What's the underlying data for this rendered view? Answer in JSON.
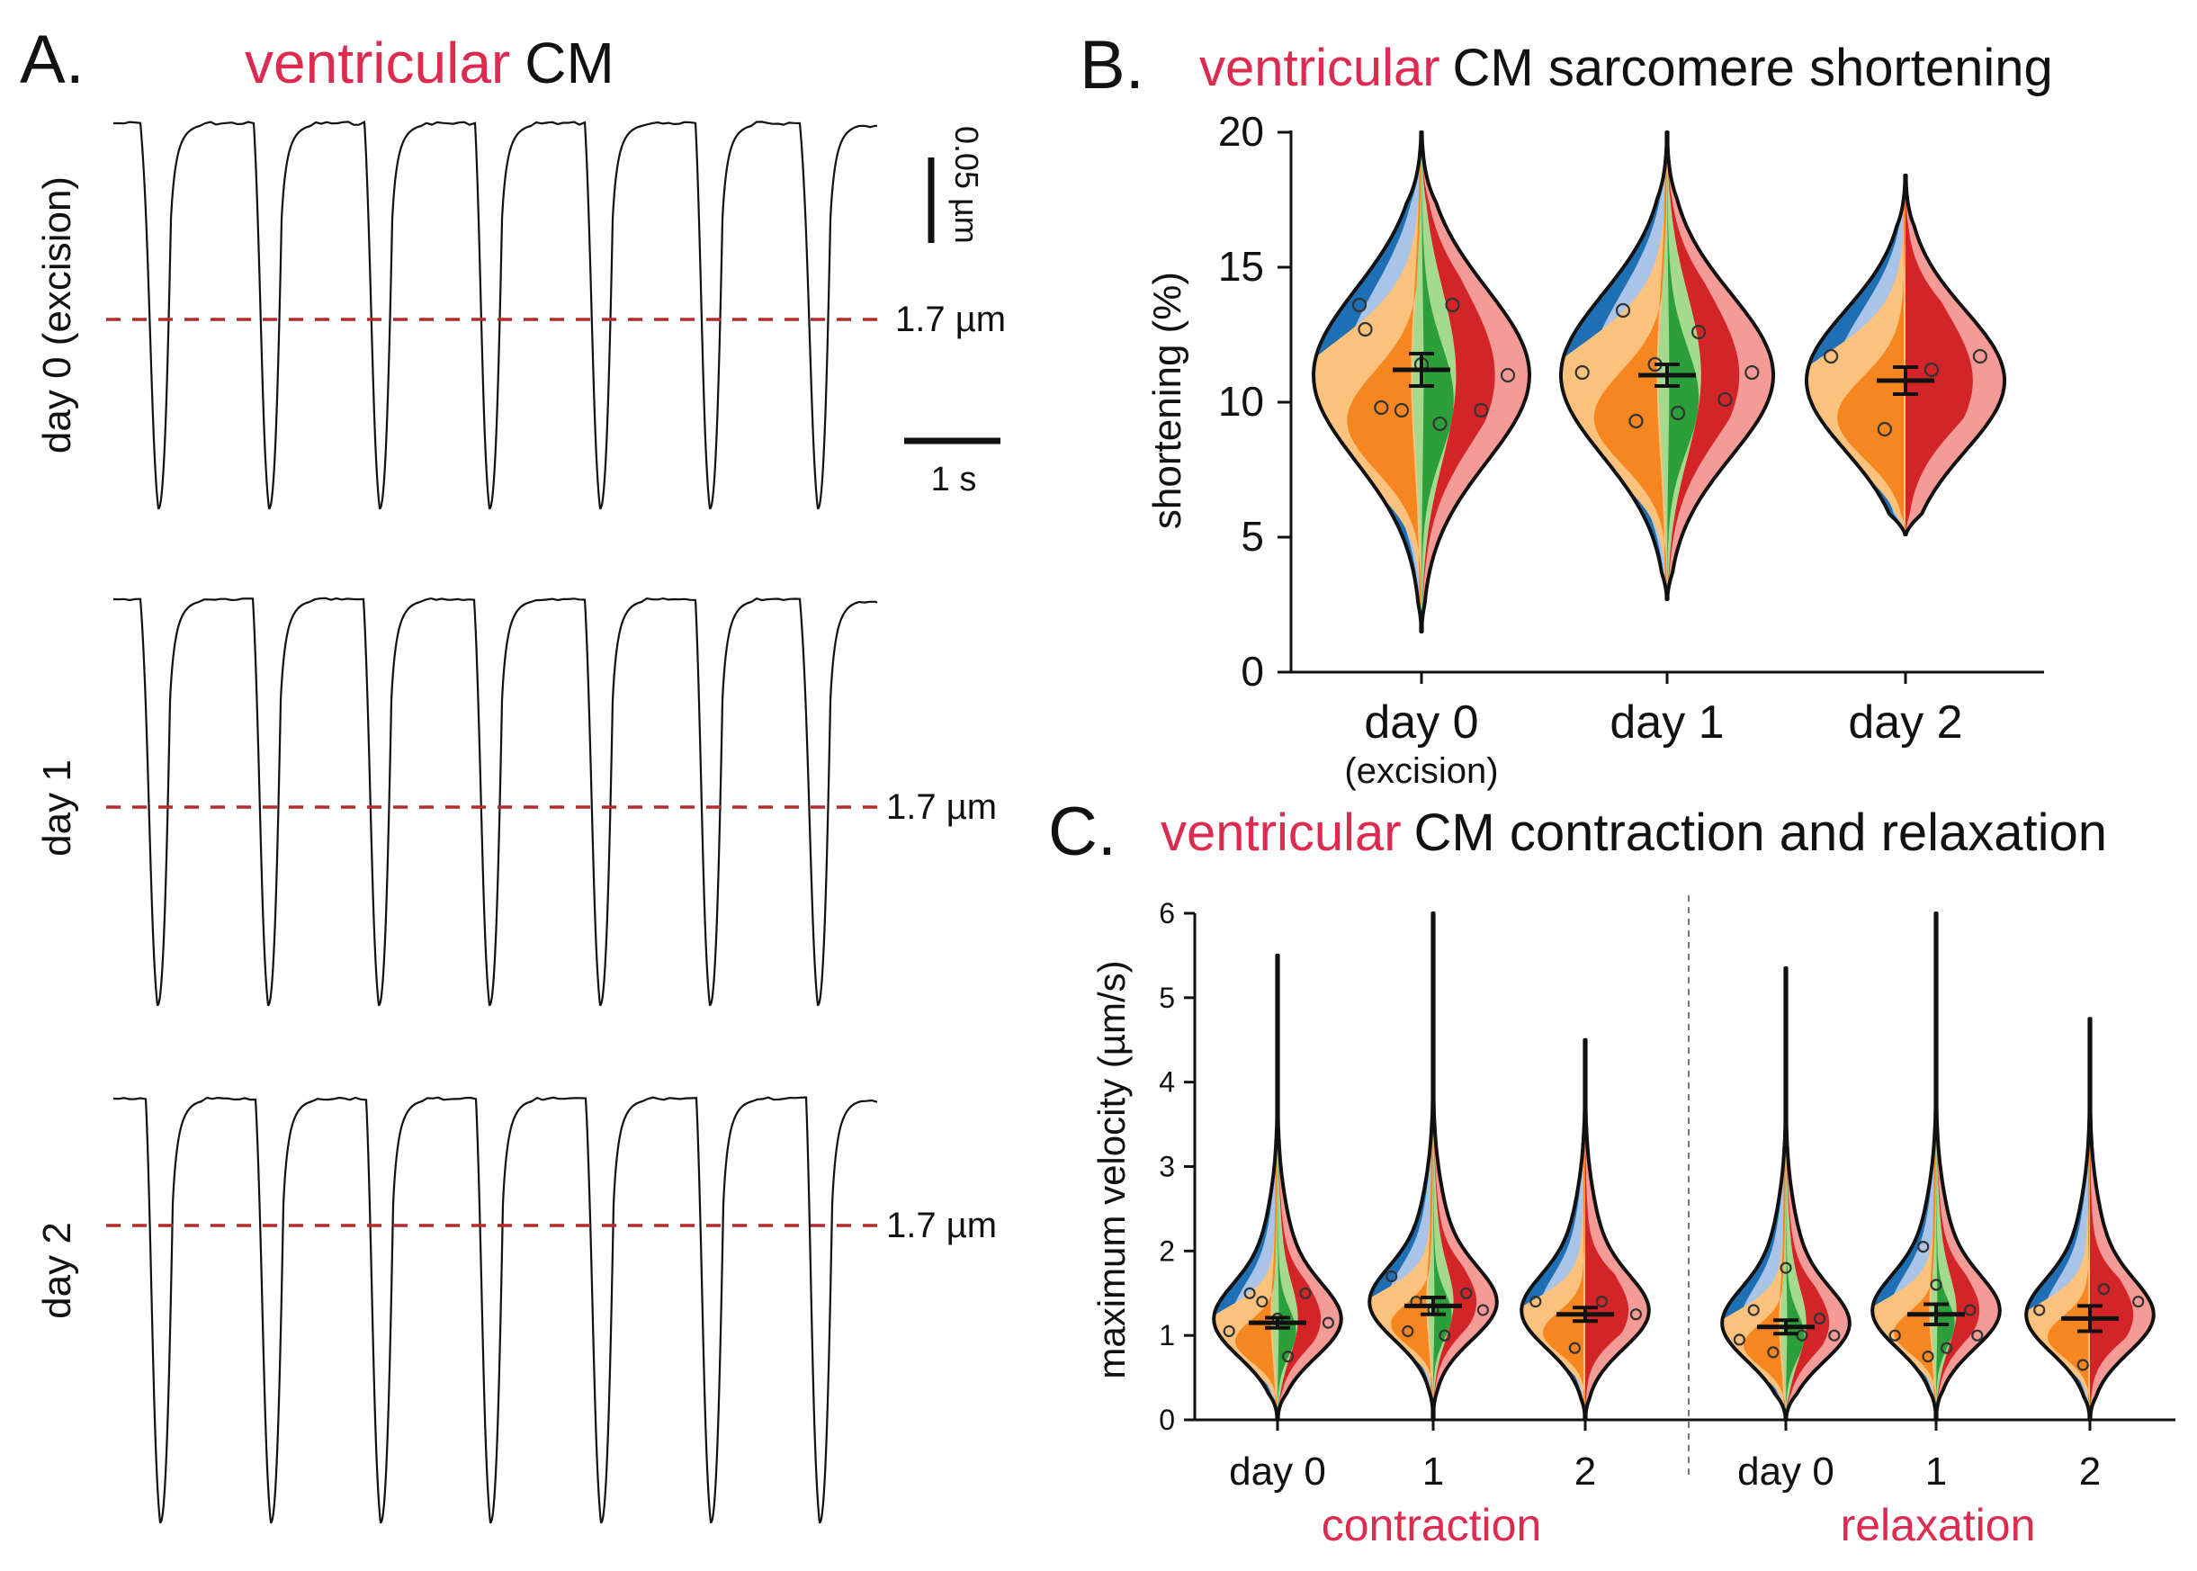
{
  "colors": {
    "accent_red": "#dd2a4f",
    "trace": "#111111",
    "dash": "#b52a2a",
    "blue": "#1f6fb4",
    "blue_light": "#a9c4e6",
    "orange": "#f6861f",
    "orange_light": "#fbc27e",
    "green": "#2c9e3a",
    "green_light": "#a5d98d",
    "red": "#d32428",
    "red_light": "#f59b97"
  },
  "panelA": {
    "letter": "A.",
    "title_red": "ventricular",
    "title_black": "CM",
    "rows": [
      {
        "label": "day 0 (excision)",
        "ref_label": "1.7 µm"
      },
      {
        "label": "day 1",
        "ref_label": "1.7 µm"
      },
      {
        "label": "day 2",
        "ref_label": "1.7 µm"
      }
    ],
    "scale_vertical": "0.05 µm",
    "scale_horizontal": "1 s",
    "beats_per_trace": 7
  },
  "chart_data": [
    {
      "panel": "B",
      "type": "violin",
      "title_letter": "B.",
      "title_red": "ventricular",
      "title_black": "CM sarcomere shortening",
      "ylabel": "shortening (%)",
      "ylim": [
        0,
        20
      ],
      "yticks": [
        "0",
        "5",
        "10",
        "15",
        "20"
      ],
      "categories": [
        "day 0",
        "day 1",
        "day 2"
      ],
      "category_sublabels": [
        "(excision)",
        "",
        ""
      ],
      "groups": [
        {
          "name": "day 0",
          "mean": 11.2,
          "sem": 0.6,
          "range": [
            1.5,
            20
          ],
          "points": [
            13.6,
            12.7,
            9.8,
            9.7,
            11.4,
            9.2,
            13.6,
            9.7,
            11.0
          ]
        },
        {
          "name": "day 1",
          "mean": 11.0,
          "sem": 0.4,
          "range": [
            2.7,
            20
          ],
          "points": [
            11.1,
            13.4,
            9.3,
            11.4,
            9.6,
            12.6,
            10.1,
            11.1
          ]
        },
        {
          "name": "day 2",
          "mean": 10.8,
          "sem": 0.5,
          "range": [
            5.1,
            18.4
          ],
          "points": [
            11.7,
            9.0,
            11.2,
            11.7
          ]
        }
      ]
    },
    {
      "panel": "C",
      "type": "violin",
      "title_letter": "C.",
      "title_red": "ventricular",
      "title_black": "CM contraction and relaxation",
      "ylabel": "maximum velocity (µm/s)",
      "ylim": [
        0,
        6
      ],
      "yticks": [
        "0",
        "1",
        "2",
        "3",
        "4",
        "5",
        "6"
      ],
      "sections": [
        {
          "name": "contraction",
          "categories": [
            "day 0",
            "1",
            "2"
          ],
          "groups": [
            {
              "mean": 1.15,
              "sem": 0.06,
              "top": 5.5,
              "points": [
                1.05,
                1.5,
                1.4,
                1.2,
                0.75,
                1.5,
                1.15
              ]
            },
            {
              "mean": 1.35,
              "sem": 0.1,
              "top": 6.0,
              "points": [
                1.7,
                1.05,
                1.4,
                1.3,
                1.0,
                1.5,
                1.3
              ]
            },
            {
              "mean": 1.25,
              "sem": 0.08,
              "top": 4.5,
              "points": [
                1.4,
                0.85,
                1.4,
                1.25
              ]
            }
          ]
        },
        {
          "name": "relaxation",
          "categories": [
            "day 0",
            "1",
            "2"
          ],
          "groups": [
            {
              "mean": 1.1,
              "sem": 0.08,
              "top": 5.35,
              "points": [
                0.95,
                1.3,
                0.8,
                1.8,
                1.0,
                1.2,
                1.0
              ]
            },
            {
              "mean": 1.25,
              "sem": 0.12,
              "top": 6.0,
              "points": [
                1.0,
                2.05,
                0.75,
                1.6,
                0.85,
                1.3,
                1.0
              ]
            },
            {
              "mean": 1.2,
              "sem": 0.15,
              "top": 4.75,
              "points": [
                1.3,
                0.65,
                1.55,
                1.4
              ]
            }
          ]
        }
      ]
    }
  ]
}
